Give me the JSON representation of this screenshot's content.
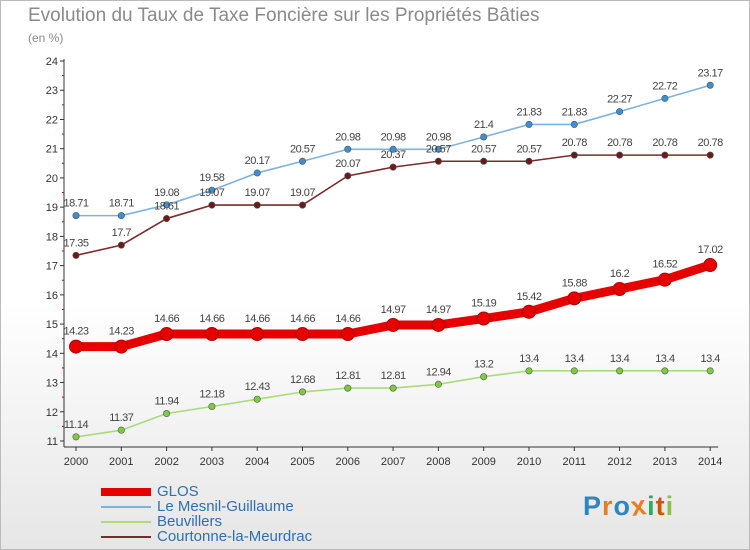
{
  "header": {
    "title": "Evolution du Taux de Taxe Foncière sur les Propriétés Bâties",
    "unit": "(en %)"
  },
  "logo": {
    "letters": [
      "P",
      "r",
      "o",
      "x",
      "i",
      "t",
      "i"
    ],
    "colors": [
      "#2e86c1",
      "#e67e22",
      "#2e86c1",
      "#e67e22",
      "#27ae60",
      "#d35400",
      "#8bc34a"
    ]
  },
  "chart_data": {
    "type": "line",
    "title": "Evolution du Taux de Taxe Foncière sur les Propriétés Bâties",
    "ylabel": "(en %)",
    "xlabel": "",
    "ylim": [
      11,
      24
    ],
    "yticks": [
      11,
      12,
      13,
      14,
      15,
      16,
      17,
      18,
      19,
      20,
      21,
      22,
      23,
      24
    ],
    "grid": false,
    "legend_position": "bottom-left",
    "x": [
      "2000",
      "2001",
      "2002",
      "2003",
      "2004",
      "2005",
      "2006",
      "2007",
      "2008",
      "2009",
      "2010",
      "2011",
      "2012",
      "2013",
      "2014"
    ],
    "series": [
      {
        "name": "GLOS",
        "color": "#e60000",
        "style": "thick",
        "values": [
          14.23,
          14.23,
          14.66,
          14.66,
          14.66,
          14.66,
          14.66,
          14.97,
          14.97,
          15.19,
          15.42,
          15.88,
          16.2,
          16.52,
          17.02
        ],
        "labels": [
          "14.23",
          "14.23",
          "14.66",
          "14.66",
          "14.66",
          "14.66",
          "14.66",
          "14.97",
          "14.97",
          "15.19",
          "15.42",
          "15.88",
          "16.2",
          "16.52",
          "17.02"
        ]
      },
      {
        "name": "Le Mesnil-Guillaume",
        "color": "#7fb2dc",
        "point_color": "#3d8fd1",
        "values": [
          18.71,
          18.71,
          19.08,
          19.58,
          20.17,
          20.57,
          20.98,
          20.98,
          20.98,
          21.4,
          21.83,
          21.83,
          22.27,
          22.72,
          23.17
        ],
        "labels": [
          "18.71",
          "18.71",
          "19.08",
          "19.58",
          "20.17",
          "20.57",
          "20.98",
          "20.98",
          "20.98",
          "21.4",
          "21.83",
          "21.83",
          "22.27",
          "22.72",
          "23.17"
        ]
      },
      {
        "name": "Beuvillers",
        "color": "#a8dc7c",
        "point_color": "#7ccc3c",
        "values": [
          11.14,
          11.37,
          11.94,
          12.18,
          12.43,
          12.68,
          12.81,
          12.81,
          12.94,
          13.2,
          13.4,
          13.4,
          13.4,
          13.4,
          13.4
        ],
        "labels": [
          "11.14",
          "11.37",
          "11.94",
          "12.18",
          "12.43",
          "12.68",
          "12.81",
          "12.81",
          "12.94",
          "13.2",
          "13.4",
          "13.4",
          "13.4",
          "13.4",
          "13.4"
        ]
      },
      {
        "name": "Courtonne-la-Meurdrac",
        "color": "#7a2b2b",
        "point_color": "#6b1a1a",
        "values": [
          17.35,
          17.7,
          18.61,
          19.07,
          19.07,
          19.07,
          20.07,
          20.37,
          20.57,
          20.57,
          20.57,
          20.78,
          20.78,
          20.78,
          20.78
        ],
        "labels": [
          "17.35",
          "17.7",
          "18.61",
          "19.07",
          "19.07",
          "19.07",
          "20.07",
          "20.37",
          "20.57",
          "20.57",
          "20.57",
          "20.78",
          "20.78",
          "20.78",
          "20.78"
        ]
      }
    ]
  }
}
